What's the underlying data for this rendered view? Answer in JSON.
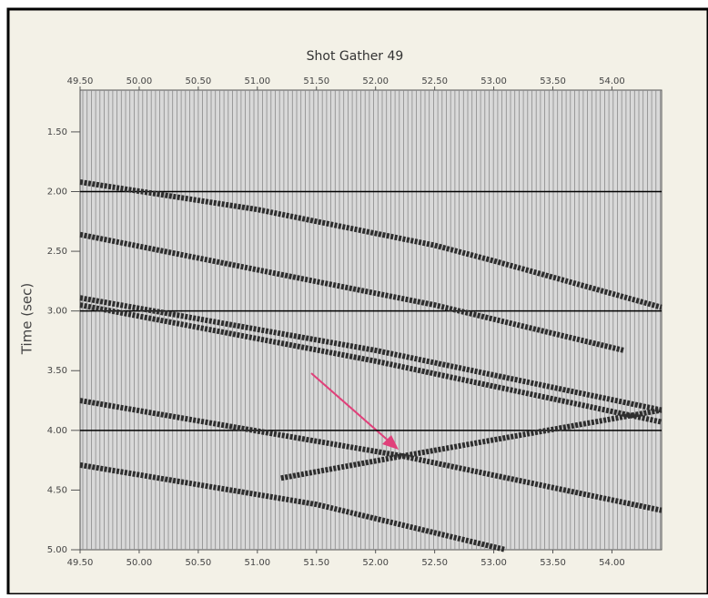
{
  "chart_data": {
    "type": "line",
    "title": "Shot Gather 49",
    "y_label": "Time (sec)",
    "xlim": [
      49.5,
      54.42
    ],
    "ylim": [
      1.15,
      5.0
    ],
    "y_inverted": true,
    "xticks": [
      {
        "value": 49.5,
        "label": "49.50"
      },
      {
        "value": 50.0,
        "label": "50.00"
      },
      {
        "value": 50.5,
        "label": "50.50"
      },
      {
        "value": 51.0,
        "label": "51.00"
      },
      {
        "value": 51.5,
        "label": "51.50"
      },
      {
        "value": 52.0,
        "label": "52.00"
      },
      {
        "value": 52.5,
        "label": "52.50"
      },
      {
        "value": 53.0,
        "label": "53.00"
      },
      {
        "value": 53.5,
        "label": "53.50"
      },
      {
        "value": 54.0,
        "label": "54.00"
      }
    ],
    "yticks": [
      {
        "value": 1.5,
        "label": "1.50"
      },
      {
        "value": 2.0,
        "label": "2.00"
      },
      {
        "value": 2.5,
        "label": "2.50"
      },
      {
        "value": 3.0,
        "label": "3.00"
      },
      {
        "value": 3.5,
        "label": "3.50"
      },
      {
        "value": 4.0,
        "label": "4.00"
      },
      {
        "value": 4.5,
        "label": "4.50"
      },
      {
        "value": 5.0,
        "label": "5.00"
      }
    ],
    "reference_lines": [
      2.0,
      3.0,
      4.0
    ],
    "series": [
      {
        "color": "#2e2e2e",
        "x": [
          49.5,
          51.0,
          52.5,
          53.0,
          54.42
        ],
        "values": [
          1.92,
          2.15,
          2.45,
          2.58,
          2.97
        ]
      },
      {
        "color": "#2e2e2e",
        "x": [
          49.5,
          52.5,
          54.1
        ],
        "values": [
          2.36,
          2.95,
          3.33
        ]
      },
      {
        "color": "#2e2e2e",
        "x": [
          49.5,
          52.0,
          54.42
        ],
        "values": [
          2.89,
          3.33,
          3.83
        ]
      },
      {
        "color": "#2e2e2e",
        "x": [
          49.5,
          52.0,
          54.42
        ],
        "values": [
          2.95,
          3.42,
          3.93
        ]
      },
      {
        "color": "#2e2e2e",
        "x": [
          49.5,
          52.2,
          54.42
        ],
        "values": [
          3.75,
          4.21,
          4.67
        ]
      },
      {
        "color": "#2e2e2e",
        "x": [
          49.5,
          51.5,
          53.1
        ],
        "values": [
          4.29,
          4.62,
          5.0
        ]
      },
      {
        "color": "#2e2e2e",
        "x": [
          51.2,
          52.2,
          54.42
        ],
        "values": [
          4.4,
          4.22,
          3.83
        ]
      }
    ]
  }
}
